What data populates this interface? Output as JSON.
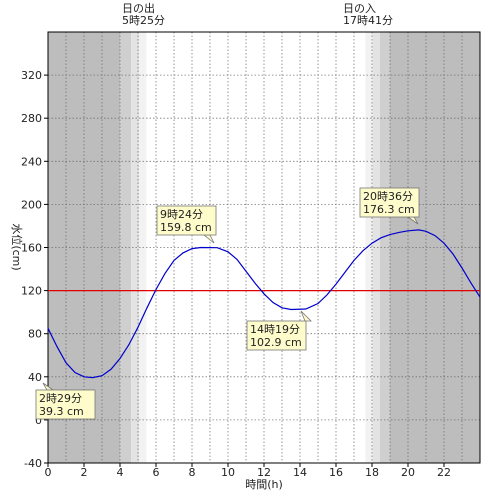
{
  "chart_data": {
    "type": "line",
    "title": "",
    "xlabel": "時間(h)",
    "ylabel": "水位(cm)",
    "xlim": [
      0,
      24
    ],
    "ylim": [
      -40,
      360
    ],
    "x_ticks": [
      0,
      2,
      4,
      6,
      8,
      10,
      12,
      14,
      16,
      18,
      20,
      22
    ],
    "y_ticks": [
      -40,
      0,
      40,
      80,
      120,
      160,
      200,
      240,
      280,
      320
    ],
    "grid": true,
    "reference_line": {
      "value": 120,
      "color": "#e00000"
    },
    "sun": {
      "sunrise": {
        "label": "日の出",
        "time": "5時25分",
        "hour": 5.417
      },
      "sunset": {
        "label": "日の入",
        "time": "17時41分",
        "hour": 17.683
      }
    },
    "series": [
      {
        "color": "#0000cc",
        "points": [
          [
            0,
            85
          ],
          [
            0.5,
            68
          ],
          [
            1.0,
            53
          ],
          [
            1.5,
            44
          ],
          [
            2.0,
            40
          ],
          [
            2.48,
            39.3
          ],
          [
            3.0,
            41
          ],
          [
            3.5,
            47
          ],
          [
            4.0,
            57
          ],
          [
            4.5,
            70
          ],
          [
            5.0,
            86
          ],
          [
            5.5,
            104
          ],
          [
            6.0,
            121
          ],
          [
            6.5,
            136
          ],
          [
            7.0,
            148
          ],
          [
            7.5,
            155
          ],
          [
            8.0,
            159
          ],
          [
            8.5,
            160
          ],
          [
            9.4,
            159.8
          ],
          [
            10.0,
            156
          ],
          [
            10.5,
            149
          ],
          [
            11.0,
            138
          ],
          [
            11.5,
            127
          ],
          [
            12.0,
            117
          ],
          [
            12.5,
            109
          ],
          [
            13.0,
            104
          ],
          [
            13.5,
            102.5
          ],
          [
            14.32,
            102.9
          ],
          [
            15.0,
            108
          ],
          [
            15.5,
            116
          ],
          [
            16.0,
            126
          ],
          [
            16.5,
            137
          ],
          [
            17.0,
            148
          ],
          [
            17.5,
            157
          ],
          [
            18.0,
            164
          ],
          [
            18.5,
            169
          ],
          [
            19.0,
            172
          ],
          [
            19.5,
            174
          ],
          [
            20.0,
            175.5
          ],
          [
            20.6,
            176.3
          ],
          [
            21.0,
            175
          ],
          [
            21.5,
            171
          ],
          [
            22.0,
            164
          ],
          [
            22.5,
            154
          ],
          [
            23.0,
            141
          ],
          [
            23.5,
            127
          ],
          [
            24,
            114
          ]
        ]
      }
    ],
    "annotations": [
      {
        "line1": "2時29分",
        "line2": "39.3 cm",
        "x": 2.48,
        "y": 39.3
      },
      {
        "line1": "9時24分",
        "line2": "159.8 cm",
        "x": 9.4,
        "y": 159.8
      },
      {
        "line1": "14時19分",
        "line2": "102.9 cm",
        "x": 14.32,
        "y": 102.9
      },
      {
        "line1": "20時36分",
        "line2": "176.3 cm",
        "x": 20.6,
        "y": 176.3
      }
    ]
  }
}
